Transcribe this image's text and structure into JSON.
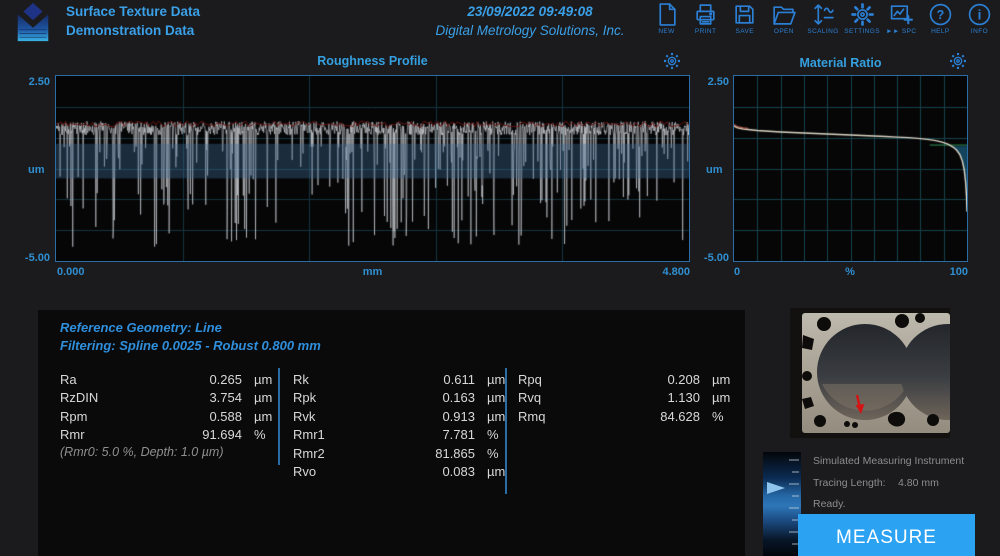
{
  "header": {
    "title_line1": "Surface Texture Data",
    "title_line2": "Demonstration Data",
    "datetime": "23/09/2022  09:49:08",
    "company": "Digital Metrology Solutions, Inc.",
    "toolbar": [
      {
        "icon": "new-icon",
        "label": "NEW"
      },
      {
        "icon": "print-icon",
        "label": "PRINT"
      },
      {
        "icon": "save-icon",
        "label": "SAVE"
      },
      {
        "icon": "open-icon",
        "label": "OPEN"
      },
      {
        "icon": "scaling-icon",
        "label": "SCALING"
      },
      {
        "icon": "settings-icon",
        "label": "SETTINGS"
      },
      {
        "icon": "spc-icon",
        "label": "►► SPC"
      },
      {
        "icon": "help-icon",
        "label": "HELP"
      },
      {
        "icon": "info-icon",
        "label": "INFO"
      }
    ]
  },
  "chart_data": [
    {
      "type": "line",
      "title": "Roughness Profile",
      "xlabel": "mm",
      "ylabel": "um",
      "xlim": [
        0.0,
        4.8
      ],
      "ylim": [
        -5.0,
        2.5
      ],
      "x_left": "0.000",
      "x_mid": "mm",
      "x_right": "4.800",
      "y_top": "2.50",
      "y_unit": "um",
      "y_bottom": "-5.00",
      "grid": {
        "x_divisions": 5,
        "y_divisions": 6
      },
      "legend_position": "none",
      "description": "Dense plateau-honed roughness trace: flat noisy plateau near +0.4 um with many deep valleys to about -4.5 um; dark-red peak envelope line on top; translucent steel-blue core band overlay.",
      "profile": {
        "seed": 42,
        "points": 1400,
        "plateau_level": 0.38,
        "plateau_noise": 0.28,
        "valley_probability": 0.16,
        "valley_max_depth": 4.1,
        "top_envelope_level": 0.55,
        "band": [
          -0.25,
          -1.65
        ]
      },
      "colors": {
        "trace": "rgba(214,218,223,0.82)",
        "envelope": "#6b1511",
        "band": "rgba(62,108,150,0.38)",
        "grid": "#123540",
        "border": "#2a6da6"
      }
    },
    {
      "type": "line",
      "title": "Material Ratio",
      "xlabel": "%",
      "ylabel": "um",
      "xlim": [
        0,
        100
      ],
      "ylim": [
        -5.0,
        2.5
      ],
      "x_left": "0",
      "x_mid": "%",
      "x_right": "100",
      "y_top": "2.50",
      "y_unit": "um",
      "y_bottom": "-5.00",
      "grid": {
        "x_divisions": 10,
        "y_divisions": 6
      },
      "legend_position": "none",
      "description": "Abbott-Firestone bearing-ratio curve: gentle decline from ~0.48 um at 0% to ~-0.2 um at 90%, then steep drop to ~-3.0 um at 100%; teal valley-region fill below -0.35 um near the right edge with thin green level line.",
      "curve": {
        "x": [
          0,
          1,
          2,
          4,
          6,
          10,
          15,
          20,
          25,
          30,
          35,
          40,
          45,
          50,
          55,
          60,
          65,
          70,
          75,
          80,
          83,
          86,
          88,
          90,
          92,
          94,
          95.5,
          97,
          98,
          98.8,
          99.4,
          99.8,
          100
        ],
        "y": [
          0.48,
          0.42,
          0.39,
          0.35,
          0.33,
          0.29,
          0.26,
          0.23,
          0.21,
          0.19,
          0.17,
          0.15,
          0.13,
          0.11,
          0.09,
          0.07,
          0.05,
          0.02,
          0.0,
          -0.04,
          -0.07,
          -0.11,
          -0.15,
          -0.2,
          -0.27,
          -0.38,
          -0.5,
          -0.7,
          -0.95,
          -1.3,
          -1.8,
          -2.4,
          -3.0
        ]
      },
      "fill_level": -0.35,
      "green_line_level": -0.3,
      "green_line_from_percent": 84,
      "colors": {
        "curve": "#ddd7c5",
        "curve_start": "#b06050",
        "fill": "rgba(32,118,162,0.55)",
        "green_line": "#2f8f55",
        "grid": "#15424c",
        "border": "#2a6da6"
      }
    }
  ],
  "results": {
    "reference_geometry": "Reference Geometry: Line",
    "filtering": "Filtering: Spline 0.0025 - Robust 0.800 mm",
    "columns": [
      {
        "rows": [
          {
            "name": "Ra",
            "value": "0.265",
            "unit": "µm"
          },
          {
            "name": "RzDIN",
            "value": "3.754",
            "unit": "µm"
          },
          {
            "name": "Rpm",
            "value": "0.588",
            "unit": "µm"
          },
          {
            "name": "Rmr",
            "value": "91.694",
            "unit": "%"
          }
        ],
        "note": "(Rmr0: 5.0 %,  Depth: 1.0 µm)"
      },
      {
        "rows": [
          {
            "name": "Rk",
            "value": "0.611",
            "unit": "µm"
          },
          {
            "name": "Rpk",
            "value": "0.163",
            "unit": "µm"
          },
          {
            "name": "Rvk",
            "value": "0.913",
            "unit": "µm"
          },
          {
            "name": "Rmr1",
            "value": "7.781",
            "unit": "%"
          },
          {
            "name": "Rmr2",
            "value": "81.865",
            "unit": "%"
          },
          {
            "name": "Rvo",
            "value": "0.083",
            "unit": "µm"
          }
        ],
        "note": ""
      },
      {
        "rows": [
          {
            "name": "Rpq",
            "value": "0.208",
            "unit": "µm"
          },
          {
            "name": "Rvq",
            "value": "1.130",
            "unit": "µm"
          },
          {
            "name": "Rmq",
            "value": "84.628",
            "unit": "%"
          }
        ],
        "note": ""
      }
    ]
  },
  "instrument": {
    "line1": "Simulated Measuring Instrument",
    "tracing_label": "Tracing Length:",
    "tracing_value": "4.80 mm",
    "status": "Ready.",
    "button_label": "MEASURE"
  },
  "colors": {
    "accent_blue": "#3aa0e8",
    "toolbar_blue": "#2b7fd4",
    "value_text": "#d8d8d8",
    "muted_text": "#8d8d8d",
    "button_blue": "#2ba2f2",
    "panel_black": "#0a0a0b",
    "page_bg": "#1b1b1d"
  }
}
